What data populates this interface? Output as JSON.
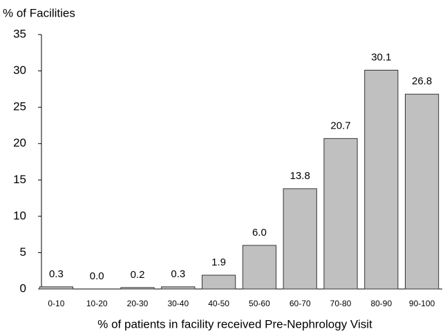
{
  "chart_data": {
    "type": "bar",
    "y_label": "% of Facilities",
    "x_label": "% of patients in facility received Pre-Nephrology Visit",
    "categories": [
      "0-10",
      "10-20",
      "20-30",
      "30-40",
      "40-50",
      "50-60",
      "60-70",
      "70-80",
      "80-90",
      "90-100"
    ],
    "values": [
      0.3,
      0,
      0.2,
      0.3,
      1.9,
      6,
      13.8,
      20.7,
      30.1,
      26.8
    ],
    "value_labels": [
      "0.3",
      "0.0",
      "0.2",
      "0.3",
      "1.9",
      "6.0",
      "13.8",
      "20.7",
      "30.1",
      "26.8"
    ],
    "color": "#c0c0c0",
    "ylim": [
      0,
      35
    ],
    "yticks": [
      0,
      5,
      10,
      15,
      20,
      25,
      30,
      35
    ],
    "grid": false
  }
}
